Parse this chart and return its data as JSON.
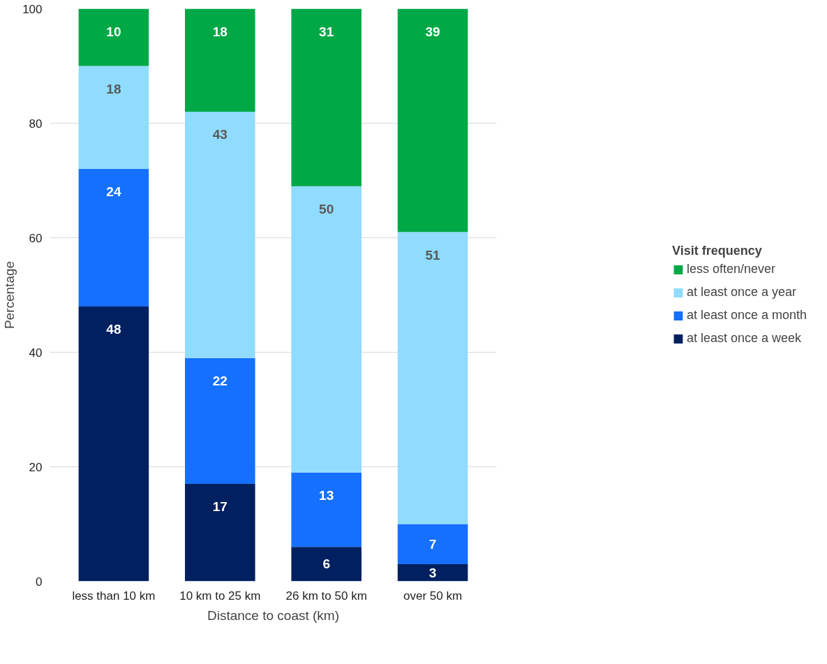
{
  "chart_data": {
    "type": "bar",
    "stacked": true,
    "xlabel": "Distance to coast (km)",
    "ylabel": "Percentage",
    "legend_title": "Visit frequency",
    "categories": [
      "less than 10 km",
      "10 km to 25 km",
      "26 km to 50 km",
      "over 50 km"
    ],
    "series": [
      {
        "name": "at least once a week",
        "color": "#002060",
        "values": [
          48,
          17,
          6,
          3
        ]
      },
      {
        "name": "at least once a month",
        "color": "#1570ff",
        "values": [
          24,
          22,
          13,
          7
        ]
      },
      {
        "name": "at least once a year",
        "color": "#8fdcff",
        "values": [
          18,
          43,
          50,
          51
        ]
      },
      {
        "name": "less often/never",
        "color": "#00a846",
        "values": [
          10,
          18,
          31,
          39
        ]
      }
    ],
    "ylim": [
      0,
      100
    ],
    "yticks": [
      0,
      20,
      40,
      60,
      80,
      100
    ],
    "grid": "y",
    "legend": "right",
    "data_labels": true
  }
}
